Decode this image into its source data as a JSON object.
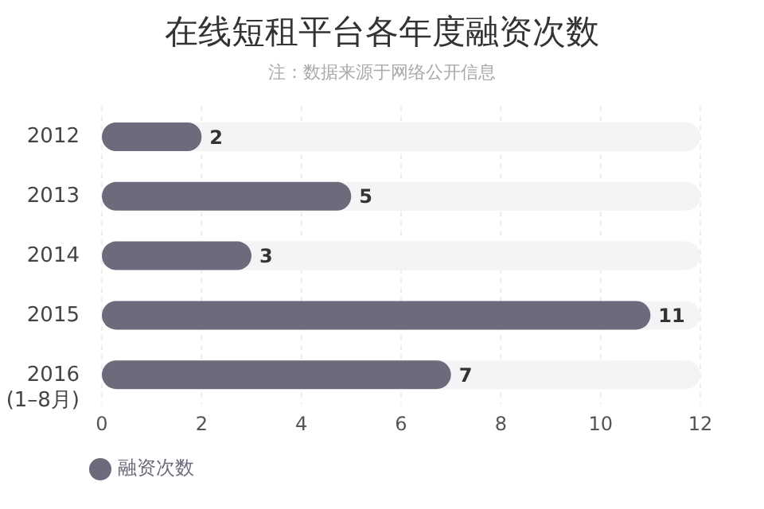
{
  "chart_data": {
    "type": "bar",
    "orientation": "horizontal",
    "title": "在线短租平台各年度融资次数",
    "subtitle": "注：数据来源于网络公开信息",
    "categories": [
      "2012",
      "2013",
      "2014",
      "2015",
      "2016\n(1–8月)"
    ],
    "series": [
      {
        "name": "融资次数",
        "color": "#6b6b7b",
        "values": [
          2,
          5,
          3,
          11,
          7
        ]
      }
    ],
    "xlim": [
      0,
      12
    ],
    "xticks": [
      0,
      2,
      4,
      6,
      8,
      10,
      12
    ],
    "grid": "x",
    "data_labels": true,
    "legend": "bottom left"
  }
}
